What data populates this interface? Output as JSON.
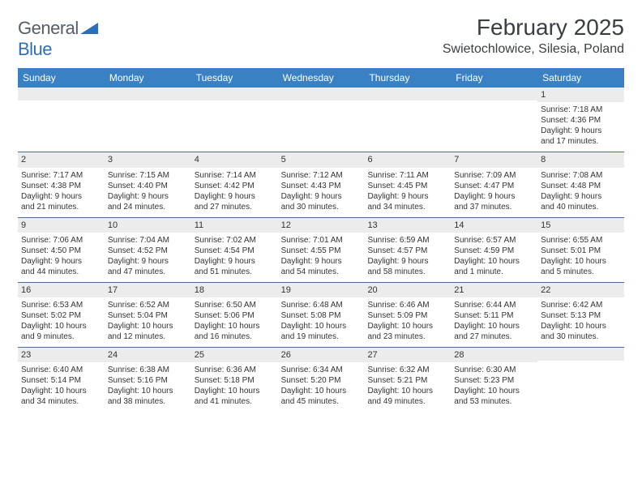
{
  "logo": {
    "general": "General",
    "blue": "Blue"
  },
  "title": "February 2025",
  "location": "Swietochlowice, Silesia, Poland",
  "colors": {
    "header_bg": "#3a81c4",
    "header_text": "#ffffff",
    "daynum_bg": "#ececec",
    "week_border": "#4a6d8f",
    "logo_blue": "#2d6fb7",
    "logo_gray": "#555e66",
    "text": "#333333"
  },
  "weekdays": [
    "Sunday",
    "Monday",
    "Tuesday",
    "Wednesday",
    "Thursday",
    "Friday",
    "Saturday"
  ],
  "weeks": [
    [
      {
        "n": "",
        "lines": []
      },
      {
        "n": "",
        "lines": []
      },
      {
        "n": "",
        "lines": []
      },
      {
        "n": "",
        "lines": []
      },
      {
        "n": "",
        "lines": []
      },
      {
        "n": "",
        "lines": []
      },
      {
        "n": "1",
        "lines": [
          "Sunrise: 7:18 AM",
          "Sunset: 4:36 PM",
          "Daylight: 9 hours",
          "and 17 minutes."
        ]
      }
    ],
    [
      {
        "n": "2",
        "lines": [
          "Sunrise: 7:17 AM",
          "Sunset: 4:38 PM",
          "Daylight: 9 hours",
          "and 21 minutes."
        ]
      },
      {
        "n": "3",
        "lines": [
          "Sunrise: 7:15 AM",
          "Sunset: 4:40 PM",
          "Daylight: 9 hours",
          "and 24 minutes."
        ]
      },
      {
        "n": "4",
        "lines": [
          "Sunrise: 7:14 AM",
          "Sunset: 4:42 PM",
          "Daylight: 9 hours",
          "and 27 minutes."
        ]
      },
      {
        "n": "5",
        "lines": [
          "Sunrise: 7:12 AM",
          "Sunset: 4:43 PM",
          "Daylight: 9 hours",
          "and 30 minutes."
        ]
      },
      {
        "n": "6",
        "lines": [
          "Sunrise: 7:11 AM",
          "Sunset: 4:45 PM",
          "Daylight: 9 hours",
          "and 34 minutes."
        ]
      },
      {
        "n": "7",
        "lines": [
          "Sunrise: 7:09 AM",
          "Sunset: 4:47 PM",
          "Daylight: 9 hours",
          "and 37 minutes."
        ]
      },
      {
        "n": "8",
        "lines": [
          "Sunrise: 7:08 AM",
          "Sunset: 4:48 PM",
          "Daylight: 9 hours",
          "and 40 minutes."
        ]
      }
    ],
    [
      {
        "n": "9",
        "lines": [
          "Sunrise: 7:06 AM",
          "Sunset: 4:50 PM",
          "Daylight: 9 hours",
          "and 44 minutes."
        ]
      },
      {
        "n": "10",
        "lines": [
          "Sunrise: 7:04 AM",
          "Sunset: 4:52 PM",
          "Daylight: 9 hours",
          "and 47 minutes."
        ]
      },
      {
        "n": "11",
        "lines": [
          "Sunrise: 7:02 AM",
          "Sunset: 4:54 PM",
          "Daylight: 9 hours",
          "and 51 minutes."
        ]
      },
      {
        "n": "12",
        "lines": [
          "Sunrise: 7:01 AM",
          "Sunset: 4:55 PM",
          "Daylight: 9 hours",
          "and 54 minutes."
        ]
      },
      {
        "n": "13",
        "lines": [
          "Sunrise: 6:59 AM",
          "Sunset: 4:57 PM",
          "Daylight: 9 hours",
          "and 58 minutes."
        ]
      },
      {
        "n": "14",
        "lines": [
          "Sunrise: 6:57 AM",
          "Sunset: 4:59 PM",
          "Daylight: 10 hours",
          "and 1 minute."
        ]
      },
      {
        "n": "15",
        "lines": [
          "Sunrise: 6:55 AM",
          "Sunset: 5:01 PM",
          "Daylight: 10 hours",
          "and 5 minutes."
        ]
      }
    ],
    [
      {
        "n": "16",
        "lines": [
          "Sunrise: 6:53 AM",
          "Sunset: 5:02 PM",
          "Daylight: 10 hours",
          "and 9 minutes."
        ]
      },
      {
        "n": "17",
        "lines": [
          "Sunrise: 6:52 AM",
          "Sunset: 5:04 PM",
          "Daylight: 10 hours",
          "and 12 minutes."
        ]
      },
      {
        "n": "18",
        "lines": [
          "Sunrise: 6:50 AM",
          "Sunset: 5:06 PM",
          "Daylight: 10 hours",
          "and 16 minutes."
        ]
      },
      {
        "n": "19",
        "lines": [
          "Sunrise: 6:48 AM",
          "Sunset: 5:08 PM",
          "Daylight: 10 hours",
          "and 19 minutes."
        ]
      },
      {
        "n": "20",
        "lines": [
          "Sunrise: 6:46 AM",
          "Sunset: 5:09 PM",
          "Daylight: 10 hours",
          "and 23 minutes."
        ]
      },
      {
        "n": "21",
        "lines": [
          "Sunrise: 6:44 AM",
          "Sunset: 5:11 PM",
          "Daylight: 10 hours",
          "and 27 minutes."
        ]
      },
      {
        "n": "22",
        "lines": [
          "Sunrise: 6:42 AM",
          "Sunset: 5:13 PM",
          "Daylight: 10 hours",
          "and 30 minutes."
        ]
      }
    ],
    [
      {
        "n": "23",
        "lines": [
          "Sunrise: 6:40 AM",
          "Sunset: 5:14 PM",
          "Daylight: 10 hours",
          "and 34 minutes."
        ]
      },
      {
        "n": "24",
        "lines": [
          "Sunrise: 6:38 AM",
          "Sunset: 5:16 PM",
          "Daylight: 10 hours",
          "and 38 minutes."
        ]
      },
      {
        "n": "25",
        "lines": [
          "Sunrise: 6:36 AM",
          "Sunset: 5:18 PM",
          "Daylight: 10 hours",
          "and 41 minutes."
        ]
      },
      {
        "n": "26",
        "lines": [
          "Sunrise: 6:34 AM",
          "Sunset: 5:20 PM",
          "Daylight: 10 hours",
          "and 45 minutes."
        ]
      },
      {
        "n": "27",
        "lines": [
          "Sunrise: 6:32 AM",
          "Sunset: 5:21 PM",
          "Daylight: 10 hours",
          "and 49 minutes."
        ]
      },
      {
        "n": "28",
        "lines": [
          "Sunrise: 6:30 AM",
          "Sunset: 5:23 PM",
          "Daylight: 10 hours",
          "and 53 minutes."
        ]
      },
      {
        "n": "",
        "lines": []
      }
    ]
  ]
}
